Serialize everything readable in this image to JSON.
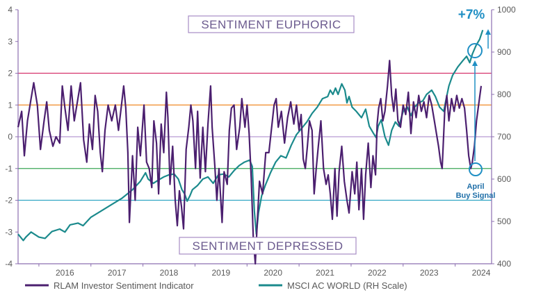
{
  "chart_data": {
    "type": "line",
    "title": "",
    "x_ticks": [
      "2016",
      "2017",
      "2018",
      "2019",
      "2020",
      "2021",
      "2022",
      "2023",
      "2024"
    ],
    "y_left": {
      "range": [
        -4,
        4
      ],
      "ticks": [
        4,
        3,
        2,
        1,
        0,
        -1,
        -2,
        -3,
        -4
      ]
    },
    "y_right": {
      "range": [
        400,
        1000
      ],
      "ticks": [
        1000,
        900,
        800,
        700,
        600,
        500,
        400
      ]
    },
    "grid": false,
    "legend_position": "bottom",
    "reference_lines": [
      {
        "value": 2,
        "color": "#d6336c"
      },
      {
        "value": 1,
        "color": "#f08a24"
      },
      {
        "value": 0,
        "color": "#b79bd2"
      },
      {
        "value": -1,
        "color": "#3aa655"
      },
      {
        "value": -2,
        "color": "#31a6c4"
      }
    ],
    "zones": {
      "top_label": "SENTIMENT EUPHORIC",
      "bottom_label": "SENTIMENT DEPRESSED"
    },
    "annotations": {
      "gain_label": "+7%",
      "signal_line1": "April",
      "signal_line2": "Buy Signal"
    },
    "series": [
      {
        "name": "RLAM Investor Sentiment Indicator",
        "axis": "left",
        "color": "#4b1f6f",
        "points": [
          [
            2015.6,
            0.3
          ],
          [
            2015.67,
            0.8
          ],
          [
            2015.72,
            -0.6
          ],
          [
            2015.78,
            0.5
          ],
          [
            2015.85,
            1.2
          ],
          [
            2015.9,
            1.7
          ],
          [
            2015.97,
            1.0
          ],
          [
            2016.03,
            -0.4
          ],
          [
            2016.1,
            0.5
          ],
          [
            2016.15,
            1.1
          ],
          [
            2016.2,
            0.2
          ],
          [
            2016.27,
            -0.3
          ],
          [
            2016.33,
            0.0
          ],
          [
            2016.4,
            -0.2
          ],
          [
            2016.45,
            1.6
          ],
          [
            2016.5,
            0.9
          ],
          [
            2016.56,
            0.2
          ],
          [
            2016.62,
            1.6
          ],
          [
            2016.68,
            0.5
          ],
          [
            2016.74,
            1.1
          ],
          [
            2016.8,
            1.7
          ],
          [
            2016.86,
            -0.1
          ],
          [
            2016.92,
            -0.8
          ],
          [
            2016.97,
            0.4
          ],
          [
            2017.03,
            -0.4
          ],
          [
            2017.08,
            1.3
          ],
          [
            2017.13,
            0.8
          ],
          [
            2017.18,
            -0.5
          ],
          [
            2017.22,
            -1.1
          ],
          [
            2017.27,
            0.2
          ],
          [
            2017.33,
            1.0
          ],
          [
            2017.4,
            0.5
          ],
          [
            2017.47,
            1.0
          ],
          [
            2017.53,
            0.2
          ],
          [
            2017.58,
            0.9
          ],
          [
            2017.63,
            1.6
          ],
          [
            2017.67,
            0.9
          ],
          [
            2017.71,
            -0.5
          ],
          [
            2017.74,
            -2.7
          ],
          [
            2017.8,
            -0.6
          ],
          [
            2017.85,
            -2.0
          ],
          [
            2017.9,
            0.3
          ],
          [
            2017.95,
            -0.6
          ],
          [
            2018.02,
            1.0
          ],
          [
            2018.07,
            -0.8
          ],
          [
            2018.12,
            -1.0
          ],
          [
            2018.17,
            -1.6
          ],
          [
            2018.21,
            0.5
          ],
          [
            2018.26,
            -0.2
          ],
          [
            2018.3,
            -1.8
          ],
          [
            2018.35,
            0.4
          ],
          [
            2018.4,
            -0.5
          ],
          [
            2018.45,
            1.4
          ],
          [
            2018.48,
            0.6
          ],
          [
            2018.52,
            -1.5
          ],
          [
            2018.57,
            -0.3
          ],
          [
            2018.62,
            -2.0
          ],
          [
            2018.66,
            -2.8
          ],
          [
            2018.7,
            -1.7
          ],
          [
            2018.74,
            -2.2
          ],
          [
            2018.78,
            -2.9
          ],
          [
            2018.83,
            -0.4
          ],
          [
            2018.88,
            0.3
          ],
          [
            2018.92,
            1.0
          ],
          [
            2018.96,
            0.5
          ],
          [
            2019.01,
            -1.0
          ],
          [
            2019.05,
            0.8
          ],
          [
            2019.1,
            -1.3
          ],
          [
            2019.15,
            0.3
          ],
          [
            2019.2,
            -1.1
          ],
          [
            2019.25,
            0.4
          ],
          [
            2019.3,
            1.6
          ],
          [
            2019.33,
            0.3
          ],
          [
            2019.38,
            -0.9
          ],
          [
            2019.42,
            -2.0
          ],
          [
            2019.46,
            -1.0
          ],
          [
            2019.52,
            -2.7
          ],
          [
            2019.56,
            -1.1
          ],
          [
            2019.62,
            -1.5
          ],
          [
            2019.66,
            0.2
          ],
          [
            2019.7,
            0.9
          ],
          [
            2019.75,
            1.0
          ],
          [
            2019.8,
            -0.4
          ],
          [
            2019.86,
            0.3
          ],
          [
            2019.9,
            1.2
          ],
          [
            2019.96,
            0.3
          ],
          [
            2020.0,
            1.0
          ],
          [
            2020.04,
            0.1
          ],
          [
            2020.08,
            -1.3
          ],
          [
            2020.12,
            -3.2
          ],
          [
            2020.16,
            -4.0
          ],
          [
            2020.2,
            -2.6
          ],
          [
            2020.24,
            -1.4
          ],
          [
            2020.3,
            -1.8
          ],
          [
            2020.36,
            -0.5
          ],
          [
            2020.42,
            -0.5
          ],
          [
            2020.48,
            0.4
          ],
          [
            2020.52,
            1.0
          ],
          [
            2020.56,
            1.2
          ],
          [
            2020.6,
            0.3
          ],
          [
            2020.66,
            0.8
          ],
          [
            2020.72,
            -0.2
          ],
          [
            2020.78,
            0.6
          ],
          [
            2020.84,
            1.1
          ],
          [
            2020.9,
            0.4
          ],
          [
            2020.95,
            1.0
          ],
          [
            2021.0,
            0.2
          ],
          [
            2021.04,
            0.7
          ],
          [
            2021.08,
            -0.7
          ],
          [
            2021.12,
            -1.0
          ],
          [
            2021.16,
            -0.3
          ],
          [
            2021.2,
            0.5
          ],
          [
            2021.25,
            0.2
          ],
          [
            2021.29,
            -1.8
          ],
          [
            2021.33,
            -1.0
          ],
          [
            2021.37,
            -0.3
          ],
          [
            2021.42,
            0.5
          ],
          [
            2021.47,
            -1.0
          ],
          [
            2021.52,
            -1.5
          ],
          [
            2021.56,
            -1.2
          ],
          [
            2021.6,
            -1.8
          ],
          [
            2021.64,
            -2.6
          ],
          [
            2021.69,
            -1.0
          ],
          [
            2021.73,
            -2.5
          ],
          [
            2021.77,
            -1.1
          ],
          [
            2021.82,
            -0.3
          ],
          [
            2021.87,
            -1.4
          ],
          [
            2021.92,
            -2.0
          ],
          [
            2021.96,
            -2.4
          ],
          [
            2022.02,
            -1.1
          ],
          [
            2022.07,
            -1.8
          ],
          [
            2022.11,
            -0.8
          ],
          [
            2022.15,
            -2.3
          ],
          [
            2022.2,
            -1.0
          ],
          [
            2022.24,
            -2.6
          ],
          [
            2022.28,
            -1.2
          ],
          [
            2022.33,
            -0.2
          ],
          [
            2022.38,
            -1.6
          ],
          [
            2022.42,
            -0.6
          ],
          [
            2022.47,
            -1.2
          ],
          [
            2022.5,
            0.4
          ],
          [
            2022.53,
            0.9
          ],
          [
            2022.57,
            1.2
          ],
          [
            2022.61,
            0.5
          ],
          [
            2022.65,
            0.8
          ],
          [
            2022.7,
            1.6
          ],
          [
            2022.74,
            2.4
          ],
          [
            2022.78,
            1.3
          ],
          [
            2022.82,
            0.8
          ],
          [
            2022.86,
            1.5
          ],
          [
            2022.9,
            0.5
          ],
          [
            2022.95,
            0.3
          ],
          [
            2023.0,
            1.0
          ],
          [
            2023.05,
            0.7
          ],
          [
            2023.1,
            1.4
          ],
          [
            2023.15,
            0.1
          ],
          [
            2023.2,
            1.1
          ],
          [
            2023.25,
            0.6
          ],
          [
            2023.3,
            1.3
          ],
          [
            2023.35,
            0.8
          ],
          [
            2023.4,
            1.1
          ],
          [
            2023.45,
            0.6
          ],
          [
            2023.5,
            1.3
          ],
          [
            2023.55,
            1.0
          ],
          [
            2023.6,
            0.5
          ],
          [
            2023.64,
            0.1
          ],
          [
            2023.68,
            -0.3
          ],
          [
            2023.72,
            -0.8
          ],
          [
            2023.75,
            -1.0
          ],
          [
            2023.8,
            0.8
          ],
          [
            2023.84,
            1.3
          ],
          [
            2023.88,
            0.5
          ],
          [
            2023.93,
            1.2
          ],
          [
            2023.98,
            0.8
          ],
          [
            2024.03,
            1.3
          ],
          [
            2024.08,
            0.9
          ],
          [
            2024.13,
            1.2
          ],
          [
            2024.18,
            0.9
          ],
          [
            2024.22,
            0.2
          ],
          [
            2024.26,
            -0.6
          ],
          [
            2024.3,
            -1.0
          ],
          [
            2024.33,
            -0.8
          ],
          [
            2024.37,
            -0.3
          ],
          [
            2024.41,
            0.5
          ],
          [
            2024.45,
            1.0
          ],
          [
            2024.5,
            1.6
          ]
        ]
      },
      {
        "name": "MSCI AC WORLD (RH Scale)",
        "axis": "right",
        "color": "#1b8a8c",
        "points": [
          [
            2015.6,
            470
          ],
          [
            2015.7,
            455
          ],
          [
            2015.75,
            463
          ],
          [
            2015.85,
            475
          ],
          [
            2016.0,
            463
          ],
          [
            2016.12,
            460
          ],
          [
            2016.25,
            476
          ],
          [
            2016.4,
            482
          ],
          [
            2016.5,
            475
          ],
          [
            2016.6,
            492
          ],
          [
            2016.75,
            496
          ],
          [
            2016.85,
            490
          ],
          [
            2017.0,
            510
          ],
          [
            2017.2,
            525
          ],
          [
            2017.4,
            540
          ],
          [
            2017.6,
            555
          ],
          [
            2017.8,
            575
          ],
          [
            2017.95,
            595
          ],
          [
            2018.05,
            615
          ],
          [
            2018.1,
            600
          ],
          [
            2018.2,
            590
          ],
          [
            2018.3,
            598
          ],
          [
            2018.4,
            605
          ],
          [
            2018.5,
            610
          ],
          [
            2018.6,
            612
          ],
          [
            2018.68,
            600
          ],
          [
            2018.75,
            575
          ],
          [
            2018.8,
            565
          ],
          [
            2018.85,
            548
          ],
          [
            2018.9,
            560
          ],
          [
            2018.95,
            575
          ],
          [
            2019.05,
            585
          ],
          [
            2019.15,
            600
          ],
          [
            2019.25,
            605
          ],
          [
            2019.35,
            590
          ],
          [
            2019.45,
            610
          ],
          [
            2019.55,
            612
          ],
          [
            2019.65,
            605
          ],
          [
            2019.75,
            620
          ],
          [
            2019.85,
            632
          ],
          [
            2019.95,
            640
          ],
          [
            2020.05,
            645
          ],
          [
            2020.1,
            630
          ],
          [
            2020.14,
            525
          ],
          [
            2020.18,
            470
          ],
          [
            2020.22,
            520
          ],
          [
            2020.28,
            560
          ],
          [
            2020.35,
            585
          ],
          [
            2020.45,
            615
          ],
          [
            2020.55,
            640
          ],
          [
            2020.65,
            655
          ],
          [
            2020.75,
            650
          ],
          [
            2020.85,
            680
          ],
          [
            2020.95,
            705
          ],
          [
            2021.05,
            720
          ],
          [
            2021.15,
            735
          ],
          [
            2021.25,
            755
          ],
          [
            2021.35,
            770
          ],
          [
            2021.45,
            790
          ],
          [
            2021.55,
            795
          ],
          [
            2021.6,
            810
          ],
          [
            2021.65,
            800
          ],
          [
            2021.7,
            815
          ],
          [
            2021.75,
            800
          ],
          [
            2021.82,
            825
          ],
          [
            2021.88,
            810
          ],
          [
            2021.92,
            780
          ],
          [
            2021.96,
            795
          ],
          [
            2022.02,
            770
          ],
          [
            2022.1,
            760
          ],
          [
            2022.2,
            745
          ],
          [
            2022.28,
            765
          ],
          [
            2022.35,
            725
          ],
          [
            2022.42,
            710
          ],
          [
            2022.48,
            698
          ],
          [
            2022.52,
            725
          ],
          [
            2022.58,
            740
          ],
          [
            2022.65,
            700
          ],
          [
            2022.72,
            680
          ],
          [
            2022.78,
            715
          ],
          [
            2022.85,
            735
          ],
          [
            2022.92,
            725
          ],
          [
            2023.0,
            760
          ],
          [
            2023.08,
            770
          ],
          [
            2023.15,
            750
          ],
          [
            2023.22,
            770
          ],
          [
            2023.3,
            780
          ],
          [
            2023.38,
            785
          ],
          [
            2023.45,
            800
          ],
          [
            2023.55,
            810
          ],
          [
            2023.62,
            795
          ],
          [
            2023.7,
            770
          ],
          [
            2023.78,
            760
          ],
          [
            2023.82,
            785
          ],
          [
            2023.88,
            820
          ],
          [
            2023.95,
            845
          ],
          [
            2024.05,
            865
          ],
          [
            2024.15,
            880
          ],
          [
            2024.22,
            890
          ],
          [
            2024.28,
            875
          ],
          [
            2024.33,
            895
          ],
          [
            2024.4,
            915
          ],
          [
            2024.47,
            930
          ],
          [
            2024.53,
            952
          ]
        ]
      }
    ]
  }
}
